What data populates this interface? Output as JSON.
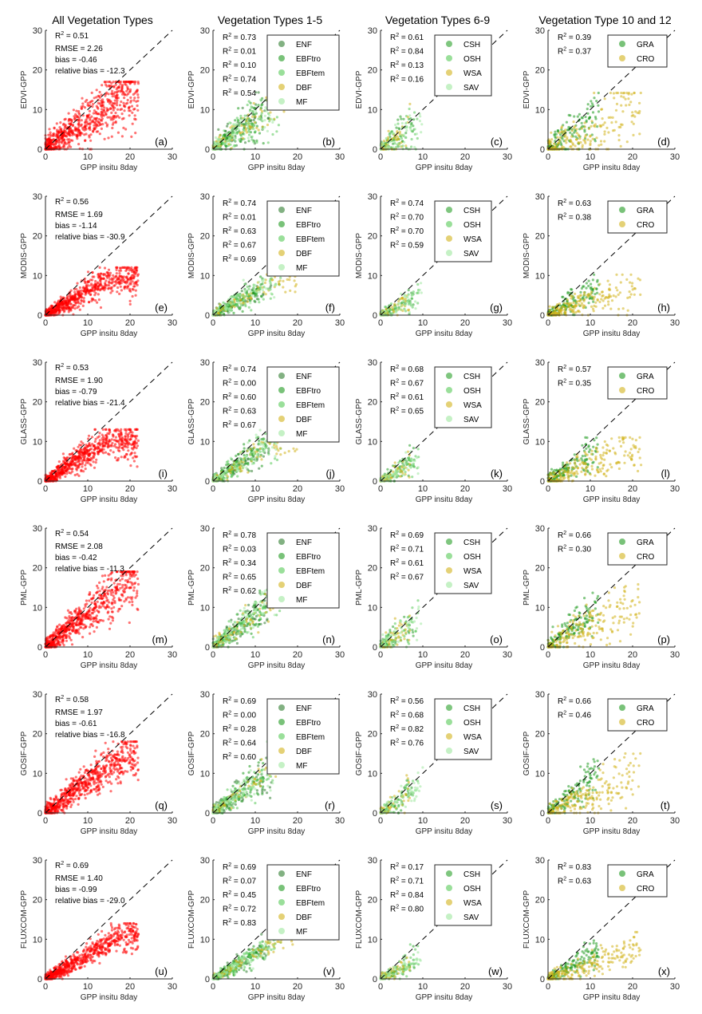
{
  "chart_data": {
    "type": "scatter",
    "layout": "6 rows x 4 columns",
    "column_titles": [
      "All Vegetation Types",
      "Vegetation Types 1-5",
      "Vegetation Types 6-9",
      "Vegetation Type 10 and 12"
    ],
    "xlabel": "GPP insitu 8day",
    "xlim": [
      0,
      30
    ],
    "ylim": [
      0,
      30
    ],
    "ticks": [
      "0",
      "10",
      "20",
      "30"
    ],
    "reference_line": "1:1 dashed",
    "legends": [
      null,
      [
        {
          "name": "ENF",
          "color": "#2f7d2f"
        },
        {
          "name": "EBFtro",
          "color": "#1f9a1f"
        },
        {
          "name": "EBFtem",
          "color": "#57c957"
        },
        {
          "name": "DBF",
          "color": "#d2b21a"
        },
        {
          "name": "MF",
          "color": "#9fe89f"
        }
      ],
      [
        {
          "name": "CSH",
          "color": "#2aa02a"
        },
        {
          "name": "OSH",
          "color": "#57c957"
        },
        {
          "name": "WSA",
          "color": "#d2b21a"
        },
        {
          "name": "SAV",
          "color": "#9fe89f"
        }
      ],
      [
        {
          "name": "GRA",
          "color": "#1f9a1f"
        },
        {
          "name": "CRO",
          "color": "#d2b21a"
        }
      ]
    ],
    "all_color": "#ff0000",
    "r2_prefix": "R",
    "r2_sup": "2",
    "stat_labels": {
      "rmse": "RMSE = ",
      "bias": "bias = ",
      "rel": "relative bias = "
    },
    "rows": [
      {
        "ylabel": "EDVI-GPP",
        "slope": 0.75,
        "ycap": 14,
        "noise": 3.2,
        "all": {
          "letter": "(a)",
          "r2": "0.51",
          "rmse": "2.26",
          "bias": "-0.46",
          "rel": "-12.3"
        },
        "g1": {
          "letter": "(b)",
          "r2": [
            "0.73",
            "0.01",
            "0.10",
            "0.74",
            "0.54"
          ]
        },
        "g2": {
          "letter": "(c)",
          "r2": [
            "0.61",
            "0.84",
            "0.13",
            "0.16"
          ]
        },
        "g3": {
          "letter": "(d)",
          "r2": [
            "0.39",
            "0.37"
          ]
        }
      },
      {
        "ylabel": "MODIS-GPP",
        "slope": 0.6,
        "ycap": 9,
        "noise": 1.8,
        "all": {
          "letter": "(e)",
          "r2": "0.56",
          "rmse": "1.69",
          "bias": "-1.14",
          "rel": "-30.9"
        },
        "g1": {
          "letter": "(f)",
          "r2": [
            "0.74",
            "0.01",
            "0.63",
            "0.67",
            "0.69"
          ]
        },
        "g2": {
          "letter": "(g)",
          "r2": [
            "0.74",
            "0.70",
            "0.70",
            "0.59"
          ]
        },
        "g3": {
          "letter": "(h)",
          "r2": [
            "0.63",
            "0.38"
          ]
        }
      },
      {
        "ylabel": "GLASS-GPP",
        "slope": 0.7,
        "ycap": 10,
        "noise": 2.0,
        "all": {
          "letter": "(i)",
          "r2": "0.53",
          "rmse": "1.90",
          "bias": "-0.79",
          "rel": "-21.4"
        },
        "g1": {
          "letter": "(j)",
          "r2": [
            "0.74",
            "0.00",
            "0.60",
            "0.63",
            "0.67"
          ]
        },
        "g2": {
          "letter": "(k)",
          "r2": [
            "0.68",
            "0.67",
            "0.61",
            "0.65"
          ]
        },
        "g3": {
          "letter": "(l)",
          "r2": [
            "0.57",
            "0.35"
          ]
        }
      },
      {
        "ylabel": "PML-GPP",
        "slope": 0.85,
        "ycap": 16,
        "noise": 2.6,
        "all": {
          "letter": "(m)",
          "r2": "0.54",
          "rmse": "2.08",
          "bias": "-0.42",
          "rel": "-11.3"
        },
        "g1": {
          "letter": "(n)",
          "r2": [
            "0.78",
            "0.03",
            "0.34",
            "0.65",
            "0.62"
          ]
        },
        "g2": {
          "letter": "(o)",
          "r2": [
            "0.69",
            "0.71",
            "0.61",
            "0.67"
          ]
        },
        "g3": {
          "letter": "(p)",
          "r2": [
            "0.66",
            "0.30"
          ]
        }
      },
      {
        "ylabel": "GOSIF-GPP",
        "slope": 0.8,
        "ycap": 15,
        "noise": 2.3,
        "all": {
          "letter": "(q)",
          "r2": "0.58",
          "rmse": "1.97",
          "bias": "-0.61",
          "rel": "-16.8"
        },
        "g1": {
          "letter": "(r)",
          "r2": [
            "0.69",
            "0.00",
            "0.28",
            "0.64",
            "0.60"
          ]
        },
        "g2": {
          "letter": "(s)",
          "r2": [
            "0.56",
            "0.68",
            "0.82",
            "0.76"
          ]
        },
        "g3": {
          "letter": "(t)",
          "r2": [
            "0.66",
            "0.46"
          ]
        }
      },
      {
        "ylabel": "FLUXCOM-GPP",
        "slope": 0.62,
        "ycap": 11,
        "noise": 1.5,
        "all": {
          "letter": "(u)",
          "r2": "0.69",
          "rmse": "1.40",
          "bias": "-0.99",
          "rel": "-29.0"
        },
        "g1": {
          "letter": "(v)",
          "r2": [
            "0.69",
            "0.07",
            "0.45",
            "0.72",
            "0.83"
          ]
        },
        "g2": {
          "letter": "(w)",
          "r2": [
            "0.17",
            "0.71",
            "0.84",
            "0.80"
          ]
        },
        "g3": {
          "letter": "(x)",
          "r2": [
            "0.83",
            "0.63"
          ]
        }
      }
    ]
  }
}
